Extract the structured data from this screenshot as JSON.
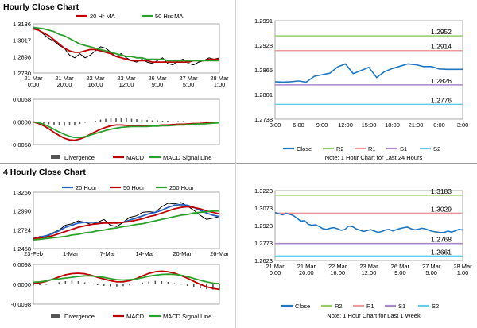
{
  "sections": {
    "hourly_title": "Hourly Close Chart",
    "four_hourly_title": "4 Hourly Close Chart"
  },
  "colors": {
    "ma_red": "#c00000",
    "ma_green": "#2ca02c",
    "ma_blue": "#2060c0",
    "close_blue": "#1f77c0",
    "r2": "#99cc66",
    "r1": "#ee9999",
    "s1": "#aa88cc",
    "s2": "#66ccee",
    "divergence": "#555555"
  },
  "chart_data": [
    {
      "id": "hourly_price",
      "type": "line",
      "title": "Hourly Close Chart",
      "ylim": [
        1.278,
        1.3136
      ],
      "y_ticks": [
        "1.3136",
        "1.3017",
        "1.2898",
        "1.2780"
      ],
      "x_ticks": [
        "21 Mar\n0:00",
        "21 Mar\n20:00",
        "22 Mar\n16:00",
        "23 Mar\n12:00",
        "26 Mar\n9:00",
        "27 Mar\n5:00",
        "28 Mar\n1:00"
      ],
      "legend": [
        "20 Hr MA",
        "50 Hrs MA"
      ],
      "series": [
        {
          "name": "Close",
          "color": "#000000",
          "values": [
            1.311,
            1.309,
            1.306,
            1.303,
            1.301,
            1.298,
            1.296,
            1.291,
            1.289,
            1.292,
            1.289,
            1.291,
            1.294,
            1.297,
            1.296,
            1.293,
            1.29,
            1.292,
            1.289,
            1.287,
            1.286,
            1.288,
            1.286,
            1.285,
            1.287,
            1.289,
            1.285,
            1.284,
            1.287,
            1.288,
            1.285,
            1.284,
            1.286,
            1.287,
            1.289,
            1.288,
            1.289
          ]
        },
        {
          "name": "20 Hr MA",
          "color": "#c00000",
          "values": [
            1.31,
            1.309,
            1.307,
            1.305,
            1.302,
            1.299,
            1.296,
            1.294,
            1.293,
            1.293,
            1.294,
            1.295,
            1.295,
            1.294,
            1.293,
            1.292,
            1.29,
            1.289,
            1.288,
            1.287,
            1.287,
            1.287,
            1.287,
            1.286,
            1.286,
            1.286,
            1.286,
            1.286,
            1.286,
            1.286,
            1.286,
            1.287,
            1.287,
            1.287,
            1.288,
            1.288,
            1.288
          ]
        },
        {
          "name": "50 Hrs MA",
          "color": "#2ca02c",
          "values": [
            1.311,
            1.3105,
            1.31,
            1.309,
            1.308,
            1.306,
            1.305,
            1.303,
            1.301,
            1.299,
            1.298,
            1.297,
            1.296,
            1.295,
            1.294,
            1.293,
            1.292,
            1.291,
            1.29,
            1.29,
            1.289,
            1.289,
            1.288,
            1.288,
            1.288,
            1.288,
            1.287,
            1.287,
            1.287,
            1.287,
            1.287,
            1.287,
            1.287,
            1.287,
            1.287,
            1.287,
            1.287
          ]
        }
      ]
    },
    {
      "id": "hourly_macd",
      "type": "line",
      "ylim": [
        -0.0058,
        0.0058
      ],
      "y_ticks": [
        "0.0058",
        "0.0000",
        "-0.0058"
      ],
      "legend": [
        "Divergence",
        "MACD",
        "MACD Signal Line"
      ],
      "divergence": [
        0.0,
        -0.0002,
        -0.0004,
        -0.0006,
        -0.0008,
        -0.0009,
        -0.001,
        -0.0009,
        -0.0007,
        -0.0005,
        -0.0002,
        0.0,
        0.0003,
        0.0006,
        0.0008,
        0.001,
        0.0011,
        0.001,
        0.0009,
        0.0008,
        0.0007,
        0.0006,
        0.0005,
        0.0004,
        0.0004,
        0.0003,
        0.0003,
        0.0002,
        0.0002,
        0.0002,
        0.0001,
        0.0001,
        0.0001,
        0.0001,
        0.0001,
        0.0,
        0.0
      ],
      "series": [
        {
          "name": "MACD",
          "color": "#c00000",
          "values": [
            0.0,
            -0.0004,
            -0.001,
            -0.0018,
            -0.0027,
            -0.0035,
            -0.0042,
            -0.0046,
            -0.0047,
            -0.0044,
            -0.0039,
            -0.0032,
            -0.0025,
            -0.0019,
            -0.0014,
            -0.001,
            -0.0008,
            -0.0008,
            -0.0009,
            -0.001,
            -0.0011,
            -0.0011,
            -0.001,
            -0.001,
            -0.0009,
            -0.0008,
            -0.0008,
            -0.0007,
            -0.0006,
            -0.0006,
            -0.0005,
            -0.0004,
            -0.0004,
            -0.0003,
            -0.0002,
            -0.0002,
            -0.0001
          ]
        },
        {
          "name": "MACD Signal Line",
          "color": "#2ca02c",
          "values": [
            0.0,
            -0.0002,
            -0.0006,
            -0.0012,
            -0.0019,
            -0.0026,
            -0.0032,
            -0.0037,
            -0.004,
            -0.004,
            -0.0038,
            -0.0034,
            -0.003,
            -0.0026,
            -0.0022,
            -0.0019,
            -0.0016,
            -0.0014,
            -0.0013,
            -0.0012,
            -0.0012,
            -0.0012,
            -0.0012,
            -0.0011,
            -0.0011,
            -0.001,
            -0.001,
            -0.0009,
            -0.0008,
            -0.0008,
            -0.0007,
            -0.0006,
            -0.0005,
            -0.0005,
            -0.0004,
            -0.0003,
            -0.0002
          ]
        }
      ]
    },
    {
      "id": "hourly_levels",
      "type": "line",
      "ylim": [
        1.2738,
        1.2991
      ],
      "y_ticks": [
        "1.2991",
        "1.2928",
        "1.2865",
        "1.2801",
        "1.2738"
      ],
      "x_ticks": [
        "3:00",
        "6:00",
        "9:00",
        "12:00",
        "15:00",
        "18:00",
        "21:00",
        "0:00",
        "3:00"
      ],
      "legend": [
        "Close",
        "R2",
        "R1",
        "S1",
        "S2"
      ],
      "note": "Note: 1 Hour Chart for Last 24 Hours",
      "levels": [
        {
          "name": "R2",
          "value": 1.2952,
          "label": "1.2952",
          "color": "#99cc66"
        },
        {
          "name": "R1",
          "value": 1.2914,
          "label": "1.2914",
          "color": "#ee9999"
        },
        {
          "name": "S1",
          "value": 1.2826,
          "label": "1.2826",
          "color": "#aa88cc"
        },
        {
          "name": "S2",
          "value": 1.2776,
          "label": "1.2776",
          "color": "#66ccee"
        }
      ],
      "series": [
        {
          "name": "Close",
          "color": "#1f77c0",
          "values": [
            1.2834,
            1.2833,
            1.2834,
            1.2836,
            1.2833,
            1.2848,
            1.2852,
            1.2856,
            1.2872,
            1.288,
            1.2855,
            1.2863,
            1.2871,
            1.2845,
            1.286,
            1.2868,
            1.2874,
            1.288,
            1.2878,
            1.2873,
            1.2873,
            1.2867,
            1.2866,
            1.2866,
            1.2866
          ]
        }
      ]
    },
    {
      "id": "four_hourly_price",
      "type": "line",
      "title": "4 Hourly Close Chart",
      "ylim": [
        1.2458,
        1.3256
      ],
      "y_ticks": [
        "1.3256",
        "1.2990",
        "1.2724",
        "1.2458"
      ],
      "x_ticks": [
        "23-Feb",
        "1-Mar",
        "7-Mar",
        "14-Mar",
        "20-Mar",
        "26-Mar"
      ],
      "legend": [
        "20 Hour",
        "50 Hour",
        "200 Hour"
      ],
      "series": [
        {
          "name": "Close",
          "color": "#000000",
          "values": [
            1.259,
            1.263,
            1.262,
            1.268,
            1.272,
            1.279,
            1.281,
            1.285,
            1.283,
            1.28,
            1.283,
            1.287,
            1.279,
            1.277,
            1.283,
            1.29,
            1.292,
            1.297,
            1.298,
            1.297,
            1.305,
            1.31,
            1.309,
            1.311,
            1.306,
            1.3,
            1.293,
            1.287,
            1.289,
            1.291
          ]
        },
        {
          "name": "20 Hour",
          "color": "#2060c0",
          "values": [
            1.26,
            1.262,
            1.264,
            1.267,
            1.271,
            1.276,
            1.279,
            1.282,
            1.283,
            1.283,
            1.283,
            1.283,
            1.283,
            1.282,
            1.283,
            1.286,
            1.289,
            1.292,
            1.295,
            1.297,
            1.3,
            1.304,
            1.307,
            1.308,
            1.307,
            1.304,
            1.3,
            1.296,
            1.293,
            1.291
          ]
        },
        {
          "name": "50 Hour",
          "color": "#c00000",
          "values": [
            1.26,
            1.261,
            1.262,
            1.264,
            1.267,
            1.27,
            1.273,
            1.276,
            1.278,
            1.28,
            1.281,
            1.282,
            1.282,
            1.282,
            1.283,
            1.284,
            1.286,
            1.288,
            1.291,
            1.293,
            1.296,
            1.299,
            1.302,
            1.304,
            1.305,
            1.304,
            1.302,
            1.299,
            1.297,
            1.295
          ]
        },
        {
          "name": "200 Hour",
          "color": "#2ca02c",
          "values": [
            1.258,
            1.259,
            1.26,
            1.261,
            1.262,
            1.263,
            1.265,
            1.266,
            1.268,
            1.269,
            1.271,
            1.272,
            1.274,
            1.275,
            1.277,
            1.278,
            1.28,
            1.281,
            1.283,
            1.285,
            1.287,
            1.289,
            1.291,
            1.293,
            1.294,
            1.296,
            1.297,
            1.298,
            1.299,
            1.299
          ]
        }
      ]
    },
    {
      "id": "four_hourly_macd",
      "type": "line",
      "ylim": [
        -0.0098,
        0.0098
      ],
      "y_ticks": [
        "0.0098",
        "0.0000",
        "-0.0098"
      ],
      "legend": [
        "Divergence",
        "MACD",
        "MACD Signal Line"
      ],
      "divergence": [
        -0.0005,
        -0.0004,
        -0.0002,
        0.0,
        0.001,
        0.0016,
        0.0018,
        0.0016,
        0.001,
        0.0003,
        -0.0004,
        -0.0008,
        -0.001,
        -0.0011,
        -0.0009,
        -0.0005,
        0.0002,
        0.0009,
        0.0014,
        0.0017,
        0.0016,
        0.0012,
        0.0006,
        -0.0001,
        -0.0008,
        -0.0014,
        -0.002,
        -0.0024,
        -0.0026,
        -0.0028
      ],
      "series": [
        {
          "name": "MACD",
          "color": "#c00000",
          "values": [
            0.0005,
            0.0008,
            0.0015,
            0.0025,
            0.0037,
            0.0047,
            0.0053,
            0.0055,
            0.0052,
            0.0045,
            0.0035,
            0.0026,
            0.0018,
            0.0012,
            0.0012,
            0.0018,
            0.0028,
            0.0042,
            0.0054,
            0.0062,
            0.0065,
            0.0062,
            0.0055,
            0.0044,
            0.003,
            0.0015,
            0.0,
            -0.0012,
            -0.002,
            -0.0025
          ]
        },
        {
          "name": "MACD Signal Line",
          "color": "#2ca02c",
          "values": [
            0.001,
            0.0012,
            0.0017,
            0.0025,
            0.0027,
            0.0031,
            0.0035,
            0.0039,
            0.0042,
            0.0042,
            0.0039,
            0.0034,
            0.0028,
            0.0023,
            0.0021,
            0.0023,
            0.0026,
            0.0033,
            0.004,
            0.0045,
            0.0049,
            0.005,
            0.0049,
            0.0045,
            0.0038,
            0.0029,
            0.002,
            0.0012,
            0.0006,
            0.0003
          ]
        }
      ]
    },
    {
      "id": "four_hourly_levels",
      "type": "line",
      "ylim": [
        1.2623,
        1.3223
      ],
      "y_ticks": [
        "1.3223",
        "1.3073",
        "1.2923",
        "1.2773",
        "1.2623"
      ],
      "x_ticks": [
        "21 Mar\n0:00",
        "21 Mar\n20:00",
        "22 Mar\n16:00",
        "23 Mar\n12:00",
        "26 Mar\n9:00",
        "27 Mar\n5:00",
        "28 Mar\n1:00"
      ],
      "legend": [
        "Close",
        "R2",
        "R1",
        "S1",
        "S2"
      ],
      "note": "Note: 1 Hour Chart for Last 1 Week",
      "levels": [
        {
          "name": "R2",
          "value": 1.3183,
          "label": "1.3183",
          "color": "#99cc66"
        },
        {
          "name": "R1",
          "value": 1.3029,
          "label": "1.3029",
          "color": "#ee9999"
        },
        {
          "name": "S1",
          "value": 1.2768,
          "label": "1.2768",
          "color": "#aa88cc"
        },
        {
          "name": "S2",
          "value": 1.2661,
          "label": "1.2661",
          "color": "#66ccee"
        }
      ],
      "series": [
        {
          "name": "Close",
          "color": "#1f77c0",
          "values": [
            1.3035,
            1.3025,
            1.3015,
            1.3028,
            1.302,
            1.3008,
            1.2985,
            1.296,
            1.2965,
            1.2935,
            1.2925,
            1.293,
            1.2915,
            1.2895,
            1.289,
            1.29,
            1.2905,
            1.2895,
            1.2882,
            1.289,
            1.2918,
            1.2915,
            1.2895,
            1.2885,
            1.2872,
            1.288,
            1.2888,
            1.2875,
            1.2865,
            1.2872,
            1.2885,
            1.289,
            1.2877,
            1.2888,
            1.2898,
            1.2905,
            1.291,
            1.2895,
            1.2887,
            1.2892,
            1.29,
            1.2893,
            1.288,
            1.2872,
            1.2867,
            1.2862,
            1.2865,
            1.2875,
            1.2867,
            1.2878,
            1.289,
            1.2885
          ]
        }
      ]
    }
  ]
}
